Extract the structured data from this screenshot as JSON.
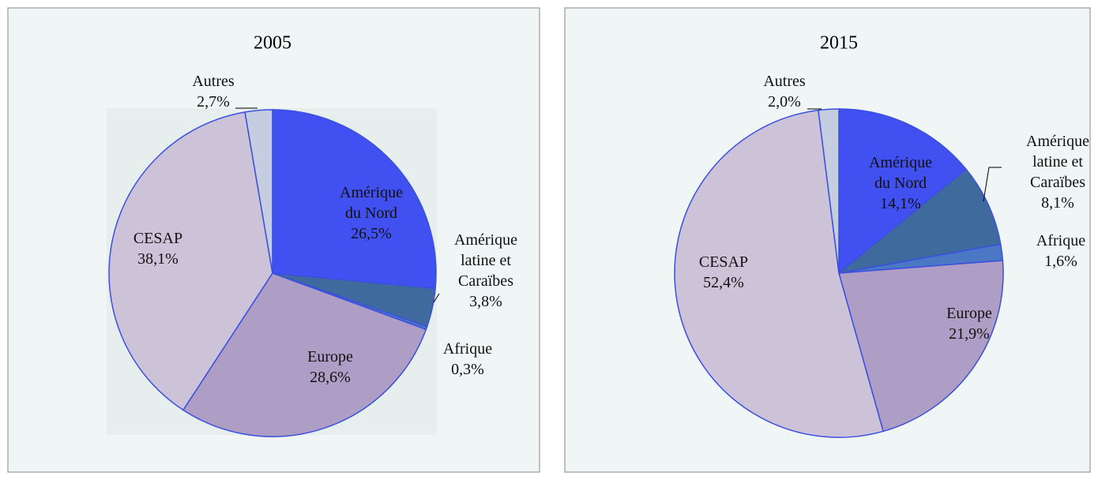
{
  "chart_data": [
    {
      "type": "pie",
      "title": "2005",
      "categories": [
        "Amérique du Nord",
        "Amérique latine et Caraïbes",
        "Afrique",
        "Europe",
        "CESAP",
        "Autres"
      ],
      "values": [
        26.5,
        3.8,
        0.3,
        28.6,
        38.1,
        2.7
      ],
      "value_labels": [
        "26,5%",
        "3,8%",
        "0,3%",
        "28,6%",
        "38,1%",
        "2,7%"
      ],
      "colors": [
        "#4150f0",
        "#3f6a9e",
        "#4a78c4",
        "#ae9dc4",
        "#cdc3d9",
        "#c5cde0"
      ]
    },
    {
      "type": "pie",
      "title": "2015",
      "categories": [
        "Amérique du Nord",
        "Amérique latine et Caraïbes",
        "Afrique",
        "Europe",
        "CESAP",
        "Autres"
      ],
      "values": [
        14.1,
        8.1,
        1.6,
        21.9,
        52.4,
        2.0
      ],
      "value_labels": [
        "14,1%",
        "8,1%",
        "1,6%",
        "21,9%",
        "52,4%",
        "2,0%"
      ],
      "colors": [
        "#4150f0",
        "#3f6a9e",
        "#4a78c4",
        "#ae9dc4",
        "#cdc3d9",
        "#c5cde0"
      ]
    }
  ]
}
